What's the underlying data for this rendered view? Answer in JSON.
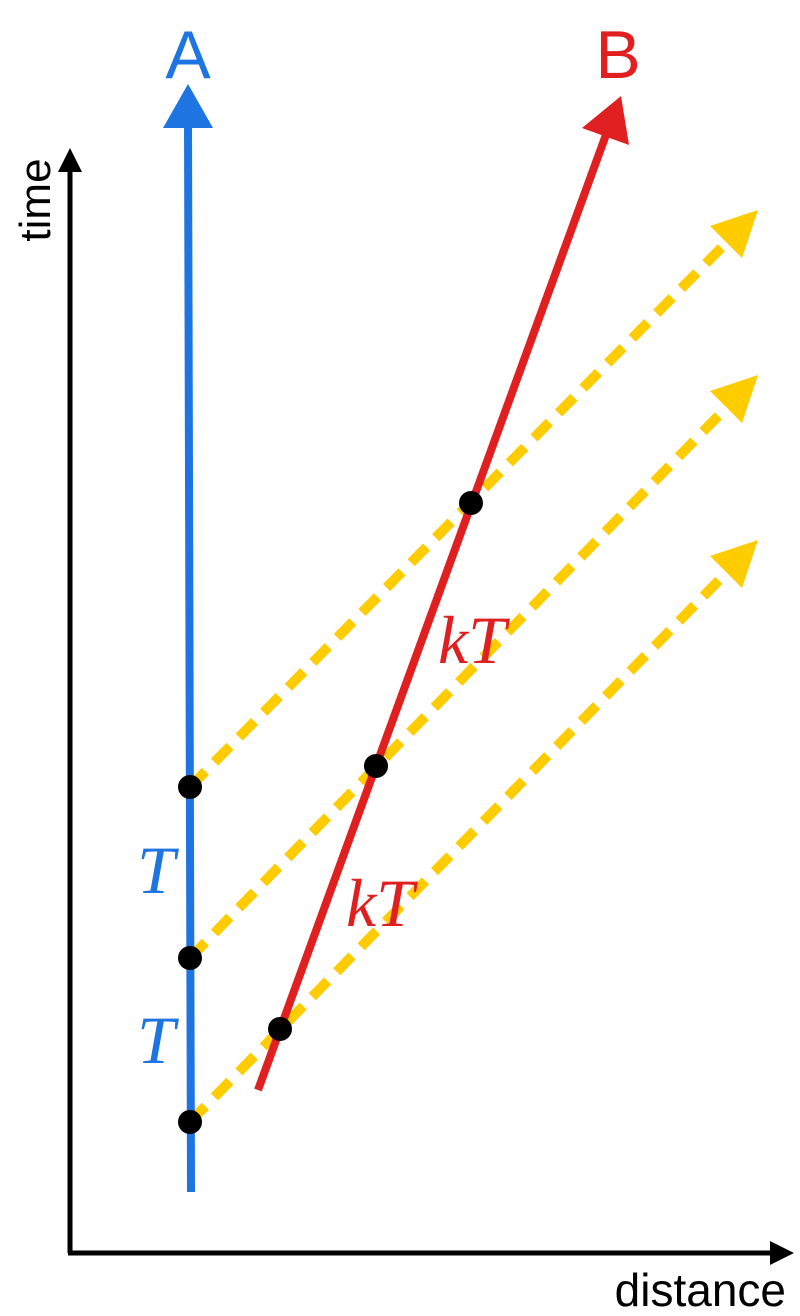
{
  "labels": {
    "a": "A",
    "b": "B",
    "y_axis": "time",
    "x_axis": "distance"
  },
  "intervals_a": [
    "T",
    "T"
  ],
  "intervals_b": [
    "kT",
    "kT"
  ]
}
